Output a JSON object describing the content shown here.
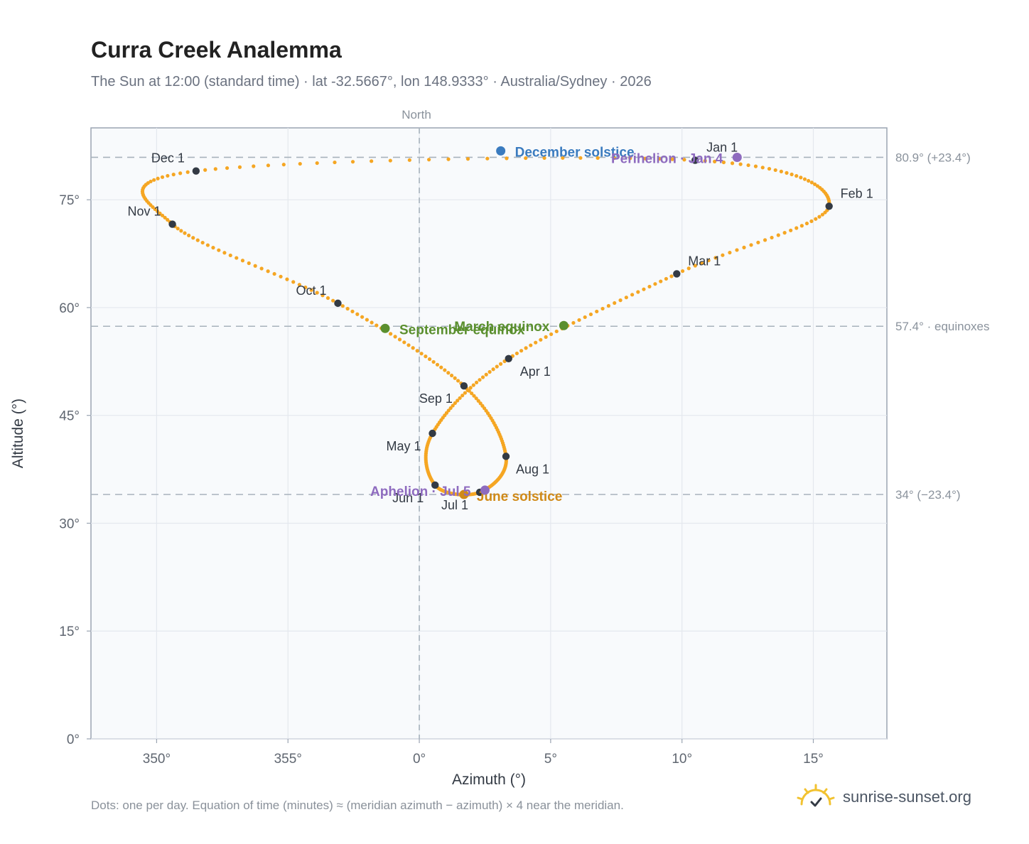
{
  "header": {
    "title": "Curra Creek Analemma",
    "subtitle": "The Sun at 12:00 (standard time) · lat -32.5667°, lon 148.9333° · Australia/Sydney · 2026"
  },
  "footer": {
    "note": "Dots: one per day. Equation of time (minutes) ≈ (meridian azimuth − azimuth) × 4 near the meridian.",
    "brand": "sunrise-sunset.org"
  },
  "colors": {
    "path": "#f5a623",
    "month_marker": "#333a44",
    "december_solstice": "#3a7bbf",
    "june_solstice": "#d08a18",
    "equinox": "#5a8f2e",
    "apsis": "#8e6bbf",
    "reference_line": "#9aa4ae",
    "plot_background": "#f8fafc"
  },
  "chart_data": {
    "type": "scatter",
    "title": "Curra Creek Analemma",
    "xlabel": "Azimuth (°)",
    "ylabel": "Altitude (°)",
    "xlim": [
      347.5,
      17.8
    ],
    "ylim": [
      0,
      85
    ],
    "x_ticks": [
      {
        "value": 350,
        "label": "350°"
      },
      {
        "value": 355,
        "label": "355°"
      },
      {
        "value": 0,
        "label": "0°"
      },
      {
        "value": 5,
        "label": "5°"
      },
      {
        "value": 10,
        "label": "10°"
      },
      {
        "value": 15,
        "label": "15°"
      }
    ],
    "y_ticks": [
      {
        "value": 0,
        "label": "0°"
      },
      {
        "value": 15,
        "label": "15°"
      },
      {
        "value": 30,
        "label": "30°"
      },
      {
        "value": 45,
        "label": "45°"
      },
      {
        "value": 60,
        "label": "60°"
      },
      {
        "value": 75,
        "label": "75°"
      }
    ],
    "grid": true,
    "north_line": {
      "azimuth": 0,
      "label": "North"
    },
    "reference_lines": [
      {
        "altitude": 80.9,
        "label": "80.9° (+23.4°)"
      },
      {
        "altitude": 57.4,
        "label": "57.4° · equinoxes"
      },
      {
        "altitude": 34.0,
        "label": "34° (−23.4°)"
      }
    ],
    "month_markers": [
      {
        "label": "Jan 1",
        "azimuth": 10.5,
        "altitude": 80.5
      },
      {
        "label": "Feb 1",
        "azimuth": 15.6,
        "altitude": 74.1
      },
      {
        "label": "Mar 1",
        "azimuth": 9.8,
        "altitude": 64.7
      },
      {
        "label": "Apr 1",
        "azimuth": 3.4,
        "altitude": 52.9
      },
      {
        "label": "May 1",
        "azimuth": 0.5,
        "altitude": 42.5
      },
      {
        "label": "Jun 1",
        "azimuth": 0.6,
        "altitude": 35.3
      },
      {
        "label": "Jul 1",
        "azimuth": 2.3,
        "altitude": 34.3
      },
      {
        "label": "Aug 1",
        "azimuth": 3.3,
        "altitude": 39.3
      },
      {
        "label": "Sep 1",
        "azimuth": 1.7,
        "altitude": 49.1
      },
      {
        "label": "Oct 1",
        "azimuth": -3.1,
        "altitude": 60.6
      },
      {
        "label": "Nov 1",
        "azimuth": -9.4,
        "altitude": 71.6
      },
      {
        "label": "Dec 1",
        "azimuth": -8.5,
        "altitude": 79.0
      }
    ],
    "events": [
      {
        "label": "December solstice",
        "azimuth": 3.1,
        "altitude": 81.8,
        "color": "#3a7bbf"
      },
      {
        "label": "Perihelion · Jan 4",
        "azimuth": 12.1,
        "altitude": 80.9,
        "color": "#8e6bbf"
      },
      {
        "label": "March equinox",
        "azimuth": 5.5,
        "altitude": 57.5,
        "color": "#5a8f2e"
      },
      {
        "label": "September equinox",
        "azimuth": -1.3,
        "altitude": 57.1,
        "color": "#5a8f2e"
      },
      {
        "label": "June solstice",
        "azimuth": 1.7,
        "altitude": 34.0,
        "color": "#d08a18"
      },
      {
        "label": "Aphelion · Jul 5",
        "azimuth": 2.5,
        "altitude": 34.6,
        "color": "#8e6bbf"
      }
    ]
  }
}
